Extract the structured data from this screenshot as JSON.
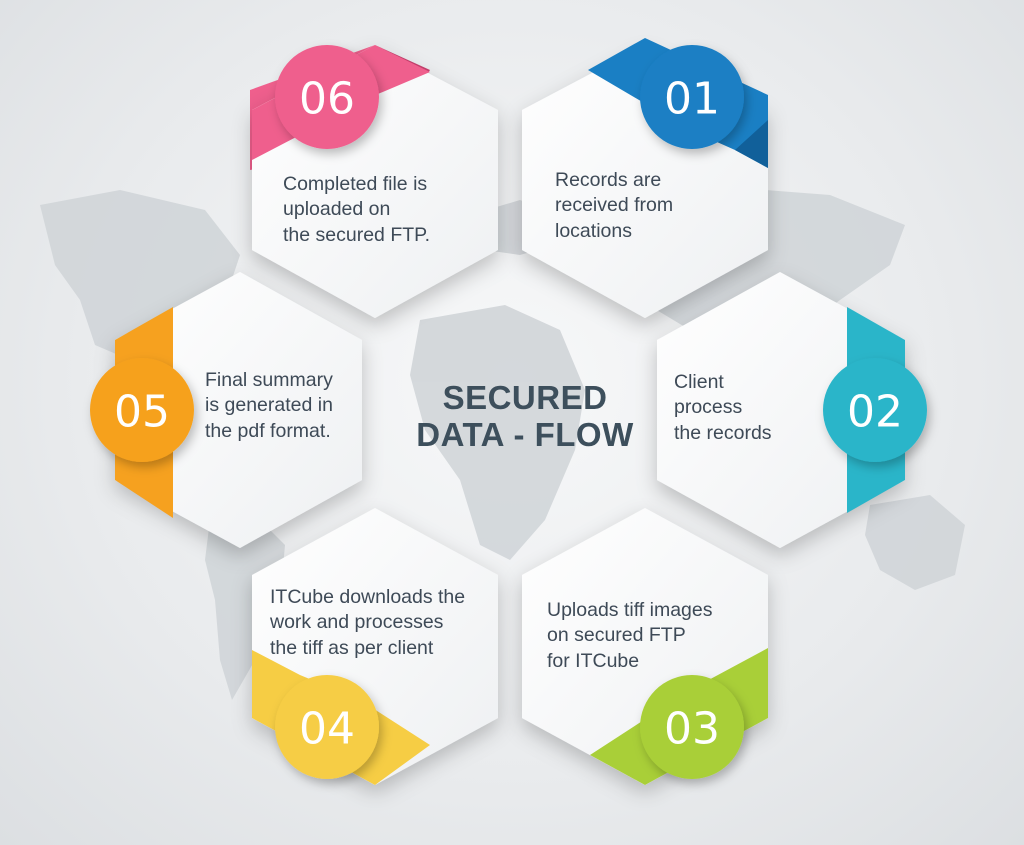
{
  "center": {
    "line1": "SECURED",
    "line2": "DATA - FLOW"
  },
  "steps": [
    {
      "number": "01",
      "text": "Records are\nreceived from\nlocations",
      "color": "#1a7fc4",
      "color_dark": "#11609a"
    },
    {
      "number": "02",
      "text": "Client\nprocess\nthe records",
      "color": "#2ab5c9",
      "color_dark": "#1d8fa0"
    },
    {
      "number": "03",
      "text": "Uploads tiff images\non secured FTP\nfor ITCube",
      "color": "#a9cf38",
      "color_dark": "#86a829"
    },
    {
      "number": "04",
      "text": "ITCube downloads the\nwork and processes\n the tiff as per client",
      "color": "#f6cd44",
      "color_dark": "#d6aa22"
    },
    {
      "number": "05",
      "text": "Final summary\nis generated in\nthe pdf format.",
      "color": "#f6a11f",
      "color_dark": "#d37f0e"
    },
    {
      "number": "06",
      "text": "Completed file is\nuploaded on\nthe secured FTP.",
      "color": "#ef5f8d",
      "color_dark": "#c9416f"
    }
  ]
}
